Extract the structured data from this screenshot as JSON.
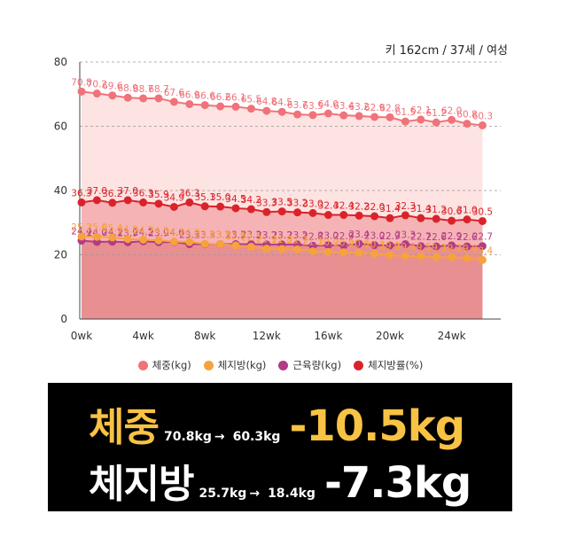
{
  "profile": "키 162cm / 37세 / 여성",
  "colors": {
    "weight": "#f0727a",
    "fat": "#f6a23e",
    "muscle": "#b23b86",
    "fatpct": "#d9232b",
    "weight_fill": "#fde3e1",
    "fatpct_fill": "#f5b3b5",
    "base_fill": "#e88f92",
    "highlight": "#f8c244"
  },
  "legend": [
    {
      "label": "체중(kg)",
      "color": "#f0727a"
    },
    {
      "label": "체지방(kg)",
      "color": "#f6a23e"
    },
    {
      "label": "근육량(kg)",
      "color": "#b23b86"
    },
    {
      "label": "체지방률(%)",
      "color": "#d9232b"
    }
  ],
  "summary": {
    "weight": {
      "title": "체중",
      "from": "70.8kg",
      "arrow": "→",
      "to": "60.3kg",
      "delta": "-10.5kg"
    },
    "fat": {
      "title": "체지방",
      "from": "25.7kg",
      "arrow": "→",
      "to": "18.4kg",
      "delta": "-7.3kg"
    }
  },
  "chart_data": {
    "type": "line",
    "x": [
      0,
      1,
      2,
      3,
      4,
      5,
      6,
      7,
      8,
      9,
      10,
      11,
      12,
      13,
      14,
      15,
      16,
      17,
      18,
      19,
      20,
      21,
      22,
      23,
      24,
      25,
      26,
      27
    ],
    "xticks": [
      "0wk",
      "4wk",
      "8wk",
      "12wk",
      "16wk",
      "20wk",
      "24wk"
    ],
    "xtick_values": [
      0,
      4,
      8,
      12,
      16,
      20,
      24
    ],
    "yticks": [
      0,
      20,
      40,
      60,
      80
    ],
    "ylim": [
      0,
      80
    ],
    "xlim": [
      0,
      27
    ],
    "series": [
      {
        "name": "체중(kg)",
        "key": "weight",
        "values": [
          70.8,
          70.2,
          69.6,
          68.9,
          68.7,
          68.7,
          67.6,
          66.9,
          66.6,
          66.2,
          66.1,
          65.5,
          64.8,
          64.5,
          63.7,
          63.5,
          64.0,
          63.4,
          63.2,
          62.9,
          62.8,
          61.5,
          62.1,
          61.2,
          62.0,
          60.8,
          60.3,
          null
        ]
      },
      {
        "name": "체지방률(%)",
        "key": "fatpct",
        "values": [
          36.3,
          37.0,
          36.2,
          37.0,
          36.3,
          35.9,
          34.9,
          36.3,
          35.1,
          35.0,
          34.5,
          34.2,
          33.3,
          33.5,
          33.2,
          33.0,
          32.4,
          32.4,
          32.2,
          32.0,
          31.4,
          32.3,
          31.4,
          31.2,
          30.6,
          31.0,
          30.5,
          null
        ]
      },
      {
        "name": "근육량(kg)",
        "key": "muscle",
        "values": [
          24.4,
          24.0,
          24.1,
          23.9,
          24.2,
          23.9,
          24.0,
          23.3,
          23.3,
          23.3,
          23.3,
          23.3,
          23.2,
          23.2,
          23.2,
          22.8,
          23.0,
          22.9,
          23.4,
          23.0,
          22.9,
          23.3,
          22.7,
          22.6,
          22.9,
          22.6,
          22.7,
          null
        ]
      },
      {
        "name": "체지방(kg)",
        "key": "fat",
        "values": [
          25.7,
          25.6,
          25.4,
          24.9,
          24.7,
          24.5,
          24.1,
          24.0,
          23.4,
          23.3,
          22.9,
          22.5,
          21.9,
          21.8,
          21.7,
          21.1,
          20.9,
          20.8,
          20.6,
          20.3,
          19.9,
          19.6,
          19.5,
          19.3,
          19.2,
          19.0,
          18.4,
          null
        ]
      }
    ],
    "data_labels": {
      "weight": [
        "70.8",
        "70.2",
        "69.6",
        "68.9",
        "68.7",
        "68.7",
        "67.6",
        "66.9",
        "66.6",
        "66.2",
        "66.1",
        "65.5",
        "64.8",
        "64.5",
        "63.7",
        "63.5",
        "64.0",
        "63.4",
        "63.2",
        "62.9",
        "62.8",
        "61.5",
        "62.1",
        "61.2",
        "62.0",
        "60.8",
        "60.3",
        ""
      ],
      "fatpct": [
        "36.3",
        "37.0",
        "36.2",
        "37.0",
        "36.3",
        "35.9",
        "34.9",
        "36.3",
        "35.1",
        "35.0",
        "34.5",
        "34.2",
        "33.3",
        "33.5",
        "33.2",
        "33.0",
        "32.4",
        "32.4",
        "32.2",
        "32.0",
        "31.4",
        "32.3",
        "31.4",
        "31.2",
        "30.6",
        "31.0",
        "30.5",
        ""
      ],
      "muscle": [
        "24.4",
        "24.0",
        "24.1",
        "23.9",
        "24.2",
        "23.9",
        "24.0",
        "23.3",
        "23.3",
        "23.3",
        "23.3",
        "23.3",
        "23.2",
        "23.2",
        "23.2",
        "22.8",
        "23.0",
        "22.9",
        "23.4",
        "23.0",
        "22.9",
        "23.3",
        "22.7",
        "22.6",
        "22.9",
        "22.6",
        "22.7",
        ""
      ],
      "fat": [
        "25.7",
        "25.6",
        "25.4",
        "24.9",
        "24.7",
        "24.5",
        "24.1",
        "24.0",
        "23.4",
        "23.3",
        "22.9",
        "22.5",
        "21.9",
        "21.8",
        "21.7",
        "21.1",
        "20.9",
        "20.8",
        "20.6",
        "20.3",
        "19.9",
        "19.6",
        "19.5",
        "19.3",
        "19.2",
        "19.0",
        "18.4",
        ""
      ]
    }
  }
}
